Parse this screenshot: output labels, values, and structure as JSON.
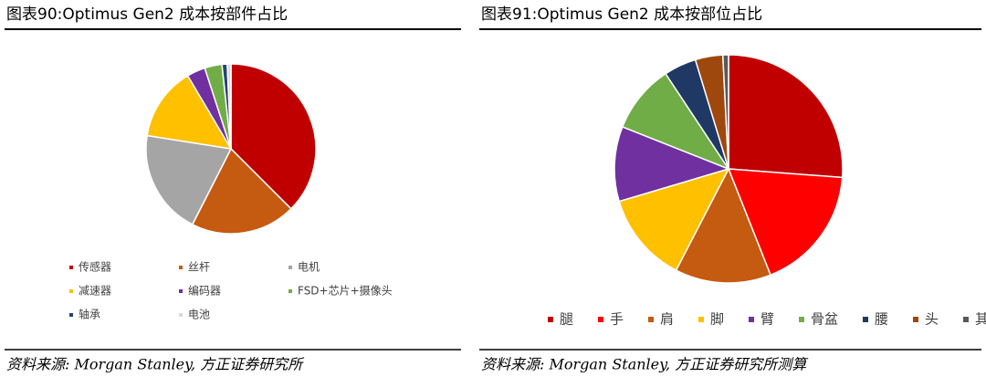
{
  "chart_data": [
    {
      "type": "pie",
      "title": "图表90:Optimus Gen2 成本按部件占比",
      "categories": [
        "传感器",
        "丝杆",
        "电机",
        "减速器",
        "编码器",
        "FSD+芯片+摄像头",
        "轴承",
        "电池"
      ],
      "values": [
        37.5,
        20,
        20,
        14,
        3.5,
        3.3,
        1,
        0.7
      ],
      "colors": [
        "#c00000",
        "#c55a11",
        "#a5a5a5",
        "#ffc000",
        "#7030a0",
        "#70ad47",
        "#264478",
        "#d9d9d9"
      ],
      "legend": "bottom",
      "source": "资料来源: Morgan Stanley, 方正证券研究所"
    },
    {
      "type": "pie",
      "title": "图表91:Optimus Gen2 成本按部位占比",
      "categories": [
        "腿",
        "手",
        "肩",
        "脚",
        "臂",
        "骨盆",
        "腰",
        "头",
        "其他"
      ],
      "values": [
        26.2,
        17.8,
        13.6,
        12.8,
        10.6,
        9.7,
        4.6,
        3.9,
        0.8
      ],
      "colors": [
        "#c00000",
        "#ff0000",
        "#c55a11",
        "#ffc000",
        "#7030a0",
        "#70ad47",
        "#203864",
        "#9e480e",
        "#595959"
      ],
      "legend": "bottom",
      "source": "资料来源: Morgan Stanley, 方正证券研究所测算"
    }
  ]
}
